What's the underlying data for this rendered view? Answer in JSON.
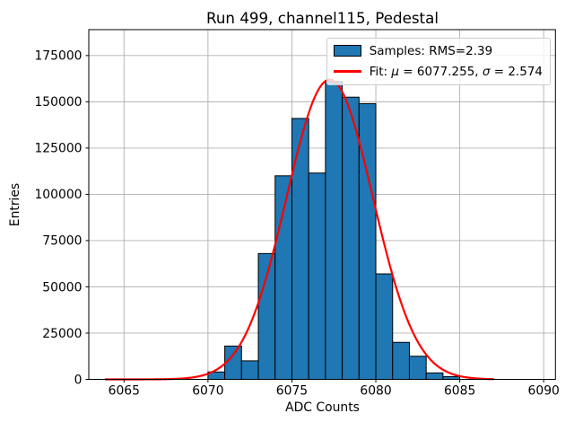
{
  "figure": {
    "background": "#ffffff"
  },
  "chart_data": {
    "type": "bar",
    "subtype": "histogram-with-gaussian-fit",
    "title": "Run 499, channel115, Pedestal",
    "xlabel": "ADC Counts",
    "ylabel": "Entries",
    "xlim": [
      6062.9,
      6090.7
    ],
    "ylim": [
      0,
      189000
    ],
    "x_ticks": [
      6065,
      6070,
      6075,
      6080,
      6085,
      6090
    ],
    "y_ticks": [
      0,
      25000,
      50000,
      75000,
      100000,
      125000,
      150000,
      175000
    ],
    "grid": true,
    "bins": {
      "start": 6070,
      "bin_width": 1,
      "counts": [
        4000,
        18000,
        10000,
        68000,
        110000,
        141000,
        111500,
        161000,
        152500,
        149000,
        57000,
        20000,
        12500,
        3500,
        1500
      ]
    },
    "fit_curve": {
      "shape": "gaussian",
      "mu": 6077.255,
      "sigma": 2.574,
      "peak": 162000,
      "x_range": [
        6063.9,
        6087.0
      ]
    },
    "legend": {
      "position": "top-right",
      "entries": [
        {
          "type": "patch",
          "label": "Samples: RMS=2.39"
        },
        {
          "type": "line",
          "label": "Fit: μ = 6077.255, σ = 2.574",
          "label_parts": [
            {
              "text": "Fit: ",
              "italic": false
            },
            {
              "text": "μ",
              "italic": true
            },
            {
              "text": " = 6077.255, ",
              "italic": false
            },
            {
              "text": "σ",
              "italic": true
            },
            {
              "text": " = 2.574",
              "italic": false
            }
          ]
        }
      ]
    }
  },
  "colors": {
    "bar_fill": "#1f77b4",
    "bar_edge": "#000000",
    "fit_line": "#ff0000",
    "grid": "#b0b0b0",
    "spine": "#000000",
    "legend_border": "#cccccc",
    "text": "#000000"
  }
}
